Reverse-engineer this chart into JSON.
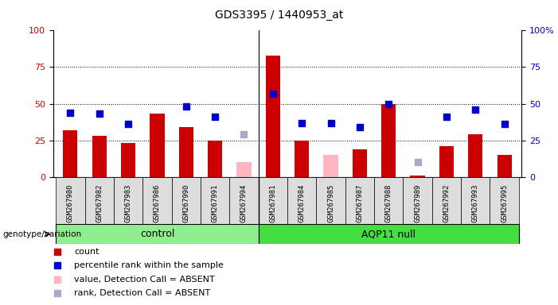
{
  "title": "GDS3395 / 1440953_at",
  "samples": [
    "GSM267980",
    "GSM267982",
    "GSM267983",
    "GSM267986",
    "GSM267990",
    "GSM267991",
    "GSM267994",
    "GSM267981",
    "GSM267984",
    "GSM267985",
    "GSM267987",
    "GSM267988",
    "GSM267989",
    "GSM267992",
    "GSM267993",
    "GSM267995"
  ],
  "red_bars": [
    32,
    28,
    23,
    43,
    34,
    25,
    null,
    83,
    25,
    null,
    19,
    50,
    1,
    21,
    29,
    15
  ],
  "blue_squares": [
    44,
    43,
    36,
    null,
    48,
    41,
    null,
    57,
    37,
    37,
    34,
    50,
    null,
    41,
    46,
    36
  ],
  "pink_bars": [
    null,
    null,
    null,
    null,
    null,
    null,
    10,
    null,
    null,
    15,
    null,
    null,
    null,
    null,
    null,
    null
  ],
  "lavender_squares": [
    null,
    null,
    null,
    null,
    null,
    null,
    29,
    null,
    null,
    null,
    null,
    null,
    10,
    null,
    null,
    null
  ],
  "control_count": 7,
  "control_color": "#90EE90",
  "aqp_color": "#44DD44",
  "legend_labels": [
    "count",
    "percentile rank within the sample",
    "value, Detection Call = ABSENT",
    "rank, Detection Call = ABSENT"
  ],
  "legend_colors": [
    "#CC0000",
    "#0000CC",
    "#FFB6C1",
    "#AAAACC"
  ],
  "ylim": [
    0,
    100
  ],
  "yticks": [
    0,
    25,
    50,
    75,
    100
  ],
  "grid_lines": [
    25,
    50,
    75
  ],
  "bar_width": 0.5,
  "marker_size": 6
}
